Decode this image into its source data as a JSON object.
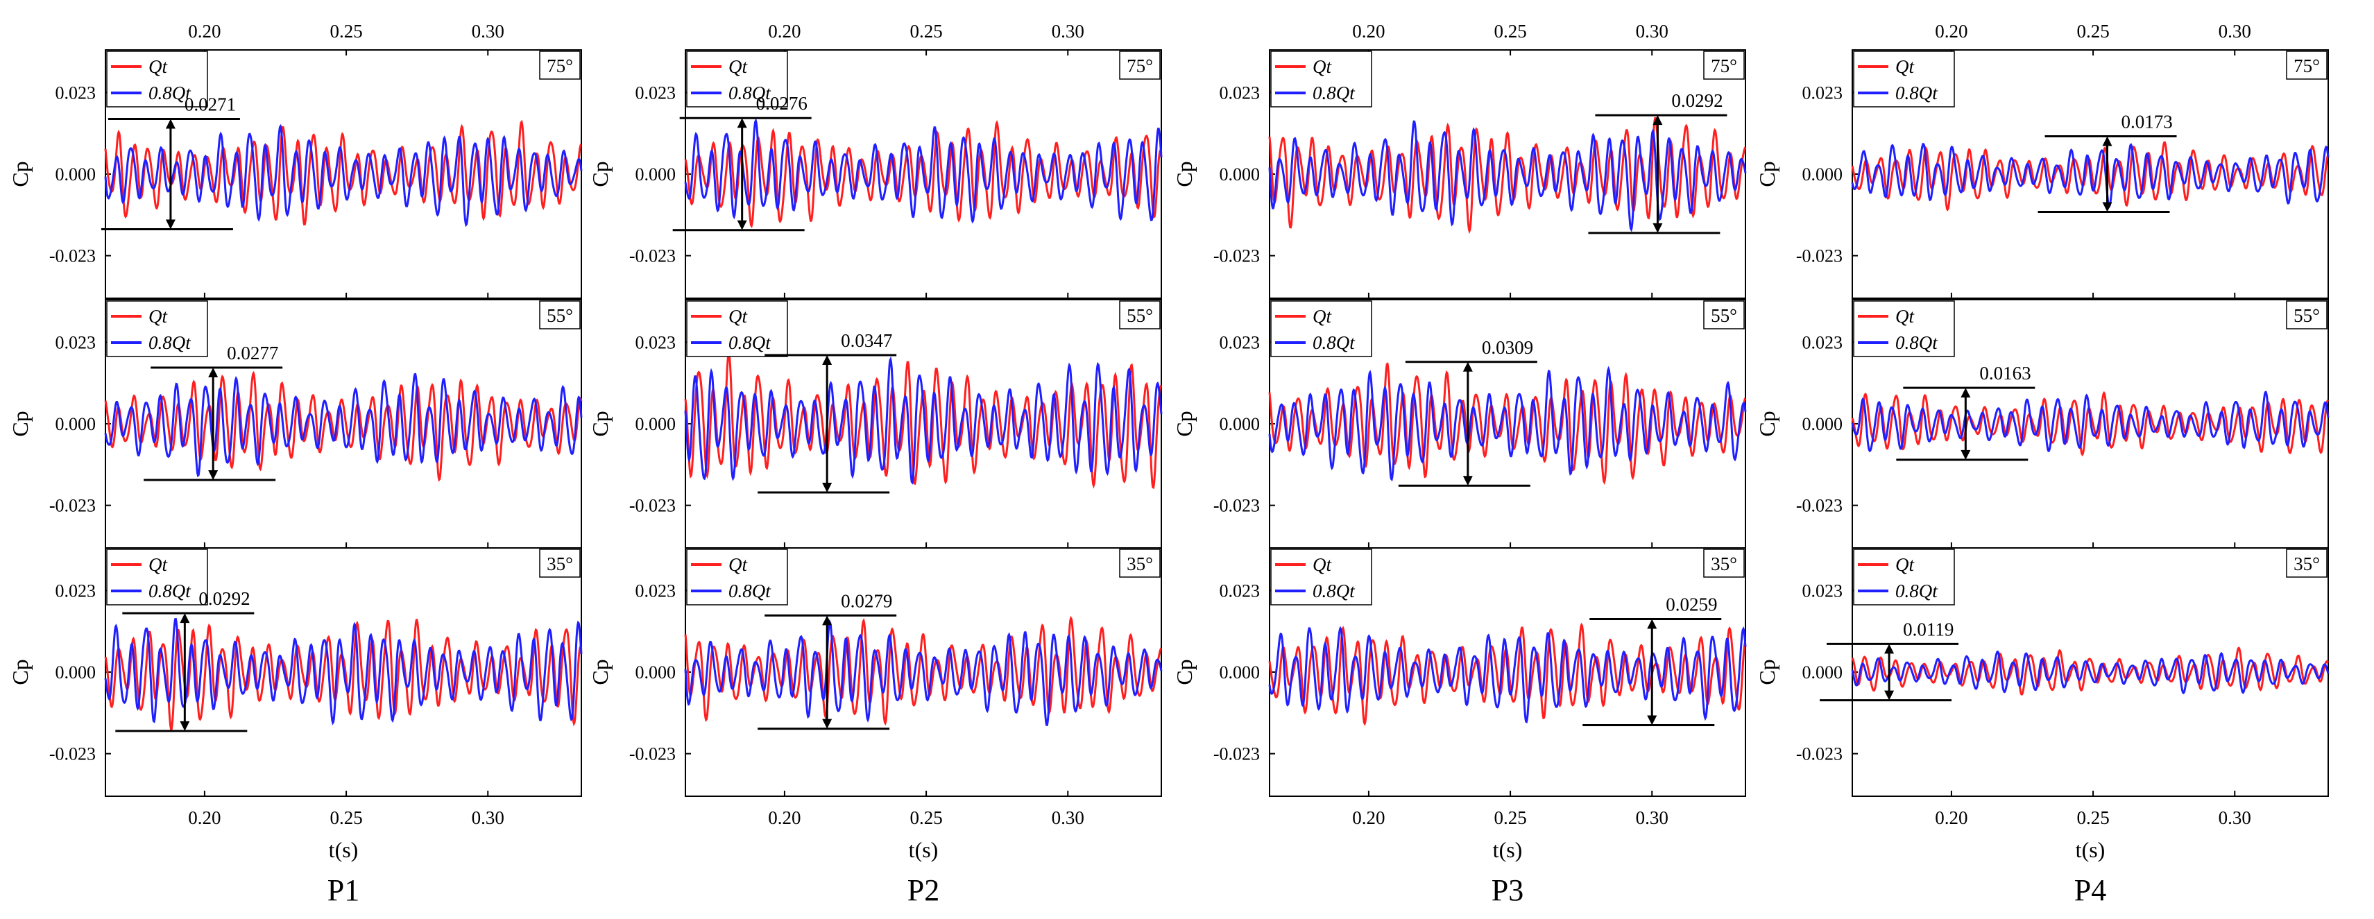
{
  "chart_data": {
    "type": "line",
    "xlabel": "t(s)",
    "ylabel": "Cp",
    "xlim": [
      0.165,
      0.333
    ],
    "ylim": [
      -0.035,
      0.035
    ],
    "x_ticks": [
      "0.20",
      "0.25",
      "0.30"
    ],
    "y_ticks": [
      "0.023",
      "0.000",
      "-0.023"
    ],
    "grid": false,
    "legend_position": "top-left",
    "legend": {
      "series1": "Qt",
      "series2": "0.8Qt"
    },
    "series_colors": {
      "series1": "#ff1f1f",
      "series2": "#1f1fff"
    },
    "panels": [
      {
        "label": "P1",
        "ylabel_shown": true,
        "subplots": [
          {
            "angle": "75°",
            "annotation": "0.0271",
            "amplitude": 0.0271,
            "marker_x": 0.188
          },
          {
            "angle": "55°",
            "annotation": "0.0277",
            "amplitude": 0.0277,
            "marker_x": 0.203
          },
          {
            "angle": "35°",
            "annotation": "0.0292",
            "amplitude": 0.0292,
            "marker_x": 0.193
          }
        ]
      },
      {
        "label": "P2",
        "ylabel_shown": true,
        "subplots": [
          {
            "angle": "75°",
            "annotation": "0.0276",
            "amplitude": 0.0276,
            "marker_x": 0.185
          },
          {
            "angle": "55°",
            "annotation": "0.0347",
            "amplitude": 0.0347,
            "marker_x": 0.215
          },
          {
            "angle": "35°",
            "annotation": "0.0279",
            "amplitude": 0.0279,
            "marker_x": 0.215
          }
        ]
      },
      {
        "label": "P3",
        "ylabel_shown": true,
        "subplots": [
          {
            "angle": "75°",
            "annotation": "0.0292",
            "amplitude": 0.0292,
            "marker_x": 0.302
          },
          {
            "angle": "55°",
            "annotation": "0.0309",
            "amplitude": 0.0309,
            "marker_x": 0.235
          },
          {
            "angle": "35°",
            "annotation": "0.0259",
            "amplitude": 0.0259,
            "marker_x": 0.3
          }
        ]
      },
      {
        "label": "P4",
        "ylabel_shown": true,
        "subplots": [
          {
            "angle": "75°",
            "annotation": "0.0173",
            "amplitude": 0.0173,
            "marker_x": 0.255
          },
          {
            "angle": "55°",
            "annotation": "0.0163",
            "amplitude": 0.0163,
            "marker_x": 0.205
          },
          {
            "angle": "35°",
            "annotation": "0.0119",
            "amplitude": 0.0119,
            "marker_x": 0.178
          }
        ]
      }
    ]
  }
}
